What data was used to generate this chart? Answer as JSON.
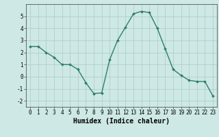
{
  "x": [
    0,
    1,
    2,
    3,
    4,
    5,
    6,
    7,
    8,
    9,
    10,
    11,
    12,
    13,
    14,
    15,
    16,
    17,
    18,
    19,
    20,
    21,
    22,
    23
  ],
  "y": [
    2.5,
    2.5,
    2.0,
    1.6,
    1.0,
    1.0,
    0.6,
    -0.5,
    -1.4,
    -1.35,
    1.4,
    3.0,
    4.1,
    5.2,
    5.4,
    5.3,
    4.0,
    2.3,
    0.6,
    0.1,
    -0.3,
    -0.4,
    -0.4,
    -1.6
  ],
  "line_color": "#2e7d6e",
  "marker": "D",
  "marker_size": 2.0,
  "line_width": 1.0,
  "bg_color": "#cde8e5",
  "grid_color": "#b0d0cc",
  "xlabel": "Humidex (Indice chaleur)",
  "xlim": [
    -0.5,
    23.5
  ],
  "ylim": [
    -2.5,
    6.0
  ],
  "yticks": [
    -2,
    -1,
    0,
    1,
    2,
    3,
    4,
    5
  ],
  "xticks": [
    0,
    1,
    2,
    3,
    4,
    5,
    6,
    7,
    8,
    9,
    10,
    11,
    12,
    13,
    14,
    15,
    16,
    17,
    18,
    19,
    20,
    21,
    22,
    23
  ],
  "tick_fontsize": 5.5,
  "xlabel_fontsize": 7.0,
  "spine_color": "#555555"
}
